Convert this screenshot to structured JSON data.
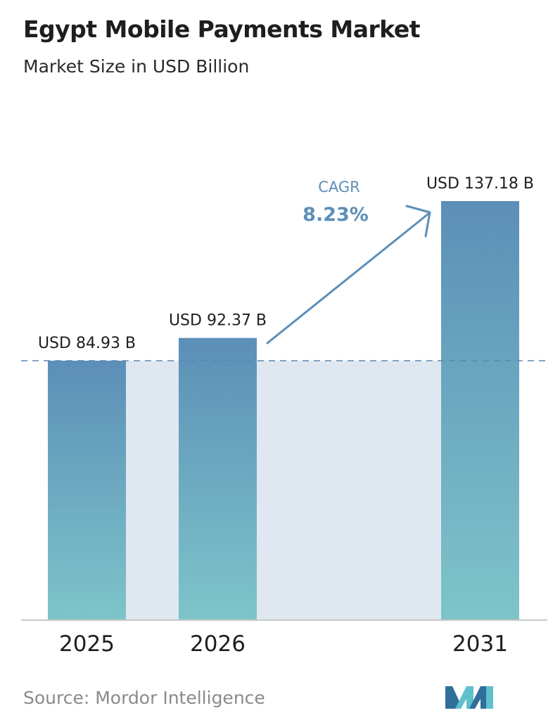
{
  "chart_data": {
    "type": "bar",
    "title": "Egypt Mobile Payments Market",
    "subtitle": "Market Size in USD Billion",
    "categories": [
      "2025",
      "2026",
      "2031"
    ],
    "values": [
      84.93,
      92.37,
      137.18
    ],
    "value_labels": [
      "USD 84.93 B",
      "USD 92.37 B",
      "USD 137.18 B"
    ],
    "annotation": {
      "label": "CAGR",
      "value": "8.23%"
    },
    "colors": {
      "bar_top": "#5c8fb8",
      "bar_bottom": "#7ec4c9",
      "shade": "#dfe8f1",
      "reference_line": "#5c88ad",
      "arrow": "#5b8fb9",
      "cagr_text": "#5b8fb9"
    }
  },
  "source": "Source:  Mordor Intelligence",
  "logo": {
    "icon": "mordor-intelligence-logo-icon",
    "colors": [
      "#2f6f9a",
      "#5fc0cd"
    ]
  }
}
